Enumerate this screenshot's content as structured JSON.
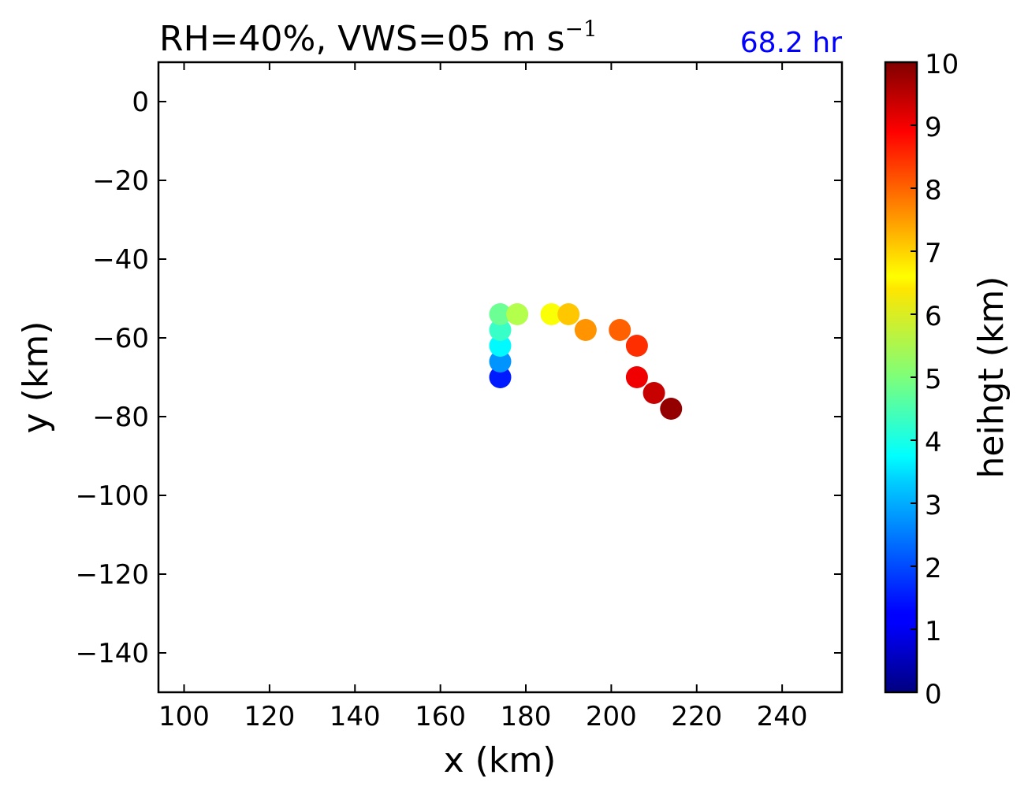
{
  "chart_data": {
    "type": "scatter",
    "title": "RH=40%, VWS=05 m s",
    "title_superscript": "−1",
    "time_label": "68.2 hr",
    "xlabel": "x (km)",
    "ylabel": "y (km)",
    "xlim": [
      94,
      254
    ],
    "ylim": [
      -150,
      10
    ],
    "xticks": [
      100,
      120,
      140,
      160,
      180,
      200,
      220,
      240
    ],
    "yticks": [
      0,
      -20,
      -40,
      -60,
      -80,
      -100,
      -120,
      -140
    ],
    "grid": false,
    "colormap": "jet",
    "colorbar": {
      "label": "heihgt (km)",
      "range": [
        0,
        10
      ],
      "ticks": [
        0,
        1,
        2,
        3,
        4,
        5,
        6,
        7,
        8,
        9,
        10
      ]
    },
    "points": [
      {
        "x": 174,
        "y": -70,
        "height": 1.5
      },
      {
        "x": 174,
        "y": -66,
        "height": 2.7
      },
      {
        "x": 174,
        "y": -62,
        "height": 3.7
      },
      {
        "x": 174,
        "y": -58,
        "height": 4.3
      },
      {
        "x": 174,
        "y": -54,
        "height": 4.8
      },
      {
        "x": 178,
        "y": -54,
        "height": 5.5
      },
      {
        "x": 186,
        "y": -54,
        "height": 6.2
      },
      {
        "x": 190,
        "y": -54,
        "height": 6.8
      },
      {
        "x": 194,
        "y": -58,
        "height": 7.3
      },
      {
        "x": 202,
        "y": -58,
        "height": 7.8
      },
      {
        "x": 206,
        "y": -62,
        "height": 8.3
      },
      {
        "x": 206,
        "y": -70,
        "height": 8.9
      },
      {
        "x": 210,
        "y": -74,
        "height": 9.3
      },
      {
        "x": 214,
        "y": -78,
        "height": 9.8
      }
    ]
  }
}
